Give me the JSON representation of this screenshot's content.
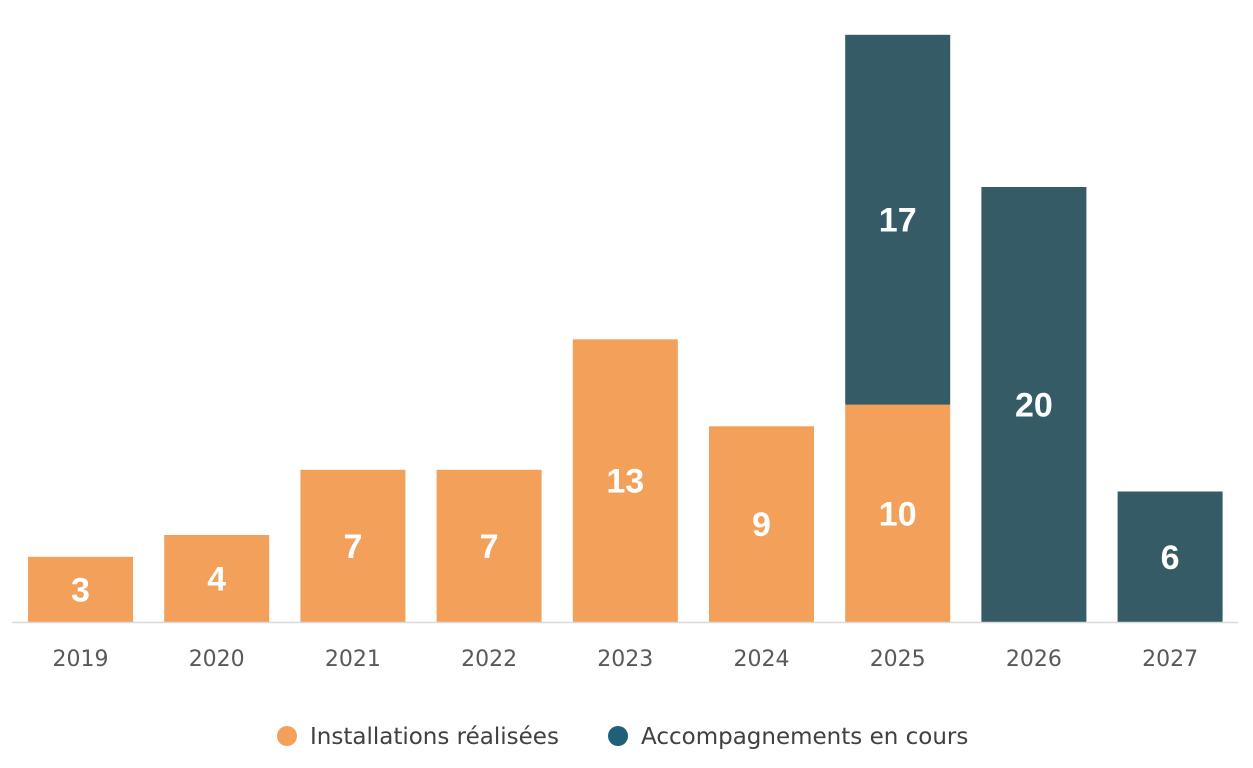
{
  "chart_data": {
    "type": "bar",
    "stacked": true,
    "categories": [
      "2019",
      "2020",
      "2021",
      "2022",
      "2023",
      "2024",
      "2025",
      "2026",
      "2027"
    ],
    "series": [
      {
        "name": "Installations réalisées",
        "color": "#F2A05A",
        "values": [
          3,
          4,
          7,
          7,
          13,
          9,
          10,
          0,
          0
        ]
      },
      {
        "name": "Accompagnements en cours",
        "color": "#345B66",
        "values": [
          0,
          0,
          0,
          0,
          0,
          0,
          17,
          20,
          6
        ]
      }
    ],
    "legend_marker_colors": [
      "#F2A05A",
      "#1F5F7A"
    ],
    "axis_color": "#D9D9D9",
    "ylim": [
      0,
      27
    ],
    "grid": false,
    "y_axis_visible": false,
    "legend_position": "bottom-center"
  }
}
